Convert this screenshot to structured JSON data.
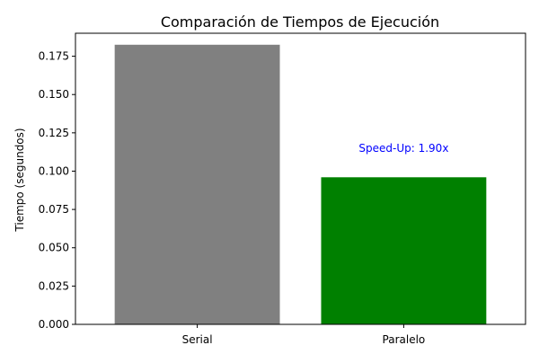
{
  "chart_data": {
    "type": "bar",
    "title": "Comparación de Tiempos de Ejecución",
    "xlabel": "",
    "ylabel": "Tiempo (segundos)",
    "categories": [
      "Serial",
      "Paralelo"
    ],
    "values": [
      0.1825,
      0.096
    ],
    "bar_colors": [
      "#808080",
      "#008000"
    ],
    "ylim": [
      0,
      0.19
    ],
    "yticks": [
      0.0,
      0.025,
      0.05,
      0.075,
      0.1,
      0.125,
      0.15,
      0.175
    ],
    "ytick_labels": [
      "0.000",
      "0.025",
      "0.050",
      "0.075",
      "0.100",
      "0.125",
      "0.150",
      "0.175"
    ],
    "grid": false,
    "annotation": {
      "text": "Speed-Up: 1.90x",
      "x_category": "Paralelo",
      "y": 0.115,
      "color": "#0000ff"
    }
  }
}
